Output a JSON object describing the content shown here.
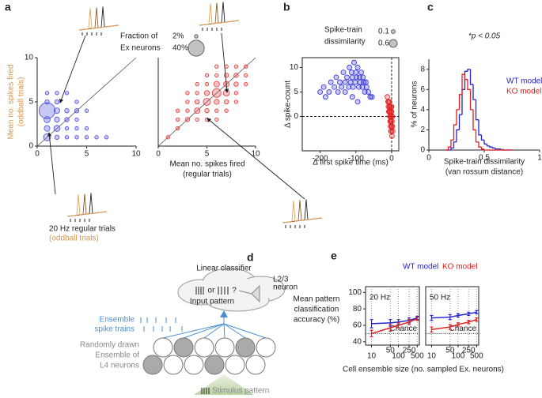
{
  "chart_data": [
    {
      "type": "bubble",
      "panel": "a",
      "xlim": [
        0,
        10
      ],
      "ylim": [
        0,
        10
      ],
      "xticks": [
        0,
        5,
        10
      ],
      "yticks": [
        0,
        5,
        10
      ],
      "frame": "spines",
      "identity_line": true,
      "ylabel": [
        "Mean no. spikes fired",
        "(oddball trials)"
      ],
      "ylabel_color": "#d9974a",
      "size_legend": {
        "title": [
          "Fraction of",
          "Ex neurons"
        ],
        "entries": [
          {
            "value": 2,
            "label": "2%"
          },
          {
            "value": 40,
            "label": "40%"
          }
        ]
      },
      "annotations": [
        {
          "text": "20 Hz regular trials",
          "color": "#222222"
        },
        {
          "text": "(oddball trials)",
          "color": "#d9974a"
        }
      ],
      "series": [
        {
          "color": "#4a4ae0",
          "x": [
            1,
            1,
            1,
            1,
            1,
            1,
            2,
            2,
            2,
            2,
            2,
            2,
            3,
            3,
            3,
            3,
            3,
            4,
            4,
            4,
            4,
            4,
            5,
            5,
            5,
            6,
            7
          ],
          "values": [
            4,
            1,
            2,
            3,
            5,
            6,
            1,
            2,
            3,
            4,
            5,
            6,
            1,
            2,
            3,
            4,
            6,
            1,
            2,
            3,
            4,
            5,
            1,
            2,
            4,
            1,
            1
          ],
          "sizes": [
            40,
            8,
            5,
            6,
            3,
            2,
            3,
            6,
            4,
            5,
            3,
            2,
            2,
            2,
            3,
            3,
            2,
            2,
            2,
            2,
            3,
            2,
            2,
            2,
            2,
            2,
            2
          ]
        }
      ]
    },
    {
      "type": "bubble",
      "xlim": [
        0,
        10
      ],
      "ylim": [
        0,
        10
      ],
      "xticks": [
        0,
        5,
        10
      ],
      "frame": "spines",
      "identity_line": true,
      "xlabel": [
        "Mean no. spikes fired",
        "(regular trials)"
      ],
      "series": [
        {
          "color": "#e03a3a",
          "x": [
            6,
            5,
            4,
            7,
            6,
            7,
            5,
            6,
            8,
            7,
            8,
            4,
            5,
            3,
            3,
            4,
            6,
            7,
            8,
            2,
            9,
            8,
            5,
            4,
            9,
            6,
            3,
            7,
            1,
            2,
            5,
            6,
            9,
            5,
            4,
            8,
            3,
            2,
            7,
            6
          ],
          "values": [
            6,
            5,
            4,
            6,
            7,
            7,
            6,
            5,
            7,
            8,
            8,
            5,
            4,
            3,
            4,
            3,
            4,
            5,
            6,
            2,
            8,
            9,
            7,
            6,
            9,
            8,
            5,
            4,
            1,
            3,
            3,
            9,
            7,
            8,
            7,
            5,
            6,
            4,
            9,
            3
          ],
          "sizes": [
            12,
            8,
            5,
            6,
            5,
            5,
            4,
            4,
            3,
            3,
            3,
            3,
            3,
            3,
            2,
            2,
            2,
            3,
            2,
            2,
            2,
            2,
            2,
            2,
            2,
            2,
            2,
            2,
            2,
            2,
            2,
            2,
            2,
            2,
            2,
            2,
            2,
            2,
            2,
            2
          ]
        }
      ]
    },
    {
      "type": "scatter",
      "panel": "b",
      "xlim": [
        -250,
        20
      ],
      "ylim": [
        -7,
        12
      ],
      "xticks": [
        -200,
        -100,
        0
      ],
      "yticks": [
        0,
        5,
        10
      ],
      "frame": "box",
      "zero_lines": true,
      "xlabel": [
        "Δ first spike time (ms)"
      ],
      "ylabel": [
        "Δ spike-count"
      ],
      "size_legend": {
        "title": [
          "Spike-train",
          "dissimilarity"
        ],
        "entries": [
          {
            "value": 0.1,
            "label": "0.1"
          },
          {
            "value": 0.6,
            "label": "0.6"
          }
        ]
      },
      "series": [
        {
          "color": "#2a2ae0",
          "x": [
            -200,
            -190,
            -185,
            -175,
            -170,
            -160,
            -155,
            -150,
            -145,
            -140,
            -135,
            -130,
            -125,
            -120,
            -118,
            -115,
            -112,
            -110,
            -108,
            -105,
            -102,
            -100,
            -98,
            -95,
            -92,
            -90,
            -88,
            -85,
            -82,
            -80,
            -78,
            -75,
            -72,
            -70,
            -65,
            -60,
            -55,
            -130,
            -110,
            -95
          ],
          "values": [
            5,
            6,
            4,
            5,
            7,
            6,
            8,
            5,
            7,
            6,
            9,
            7,
            8,
            6,
            10,
            7,
            9,
            8,
            6,
            11,
            7,
            9,
            8,
            10,
            6,
            8,
            7,
            9,
            6,
            8,
            7,
            5,
            7,
            6,
            5,
            4,
            4,
            5,
            4,
            3
          ]
        },
        {
          "color": "#e02020",
          "x": [
            -12,
            -10,
            -9,
            -8,
            -7,
            -6,
            -5,
            -5,
            -4,
            -4,
            -3,
            -3,
            -2,
            -2,
            -1,
            -1,
            0,
            0,
            1,
            1,
            2,
            2,
            3,
            -6,
            -8,
            -4,
            -2,
            0,
            -3,
            -1
          ],
          "values": [
            4,
            3,
            2,
            3,
            1,
            2,
            0,
            1,
            -1,
            2,
            0,
            -2,
            1,
            -1,
            -3,
            0,
            -2,
            2,
            -1,
            -4,
            -2,
            0,
            -3,
            3,
            1,
            -1,
            -3,
            1,
            0,
            2
          ]
        }
      ]
    },
    {
      "type": "histogram",
      "panel": "c",
      "xlim": [
        0,
        1
      ],
      "ylim": [
        0,
        9
      ],
      "xticks": [
        0,
        0.5,
        1
      ],
      "yticks": [
        0,
        2,
        4,
        6,
        8
      ],
      "frame": "spines",
      "xlabel": [
        "Spike-train dissimilarity",
        "(van rossum distance)"
      ],
      "ylabel": [
        "% of neurons"
      ],
      "annotation": "*p < 0.05",
      "legend": "upper right",
      "bins": [
        0.15,
        0.175,
        0.2,
        0.225,
        0.25,
        0.275,
        0.3,
        0.325,
        0.35,
        0.375,
        0.4,
        0.425,
        0.45,
        0.475,
        0.5,
        0.525,
        0.55,
        0.575,
        0.6,
        0.625,
        0.65,
        0.675,
        0.7,
        0.725,
        0.75
      ],
      "series": [
        {
          "name": "WT model",
          "color": "#2424d0",
          "values": [
            0,
            0,
            0.2,
            0.8,
            2,
            3.5,
            6,
            7.8,
            8,
            6.5,
            5,
            3,
            1.5,
            1,
            0.6,
            0.4,
            0.3,
            0.2,
            0.1,
            0.1,
            0.05,
            0,
            0,
            0
          ]
        },
        {
          "name": "KO model",
          "color": "#e02020",
          "values": [
            0,
            0.3,
            1,
            2.5,
            4,
            5.5,
            7.5,
            7,
            6,
            4,
            2,
            0.8,
            0.3,
            0.1,
            0,
            0,
            0,
            0,
            0,
            0,
            0,
            0,
            0,
            0
          ]
        }
      ]
    },
    {
      "type": "line",
      "panel": "e",
      "title": "20 Hz",
      "log_x": true,
      "xlim": [
        6,
        600
      ],
      "ylim": [
        36,
        107
      ],
      "xticks": [
        10,
        50,
        100,
        250,
        500
      ],
      "yticks": [
        40,
        60,
        80,
        100
      ],
      "frame": "box",
      "grid": true,
      "chance": {
        "value": 50,
        "label": "Chance"
      },
      "ylabel": [
        "Mean pattern",
        "classification",
        "accuracy (%)"
      ],
      "xlabel": [
        "Cell ensemble size (no. sampled Ex. neurons)"
      ],
      "series": [
        {
          "name": "WT model",
          "color": "#2424d0",
          "x": [
            10,
            50,
            100,
            250,
            500
          ],
          "values": [
            62,
            63,
            64,
            66,
            69
          ],
          "errors": [
            5,
            4,
            3,
            3,
            2
          ]
        },
        {
          "name": "KO model",
          "color": "#e02020",
          "x": [
            10,
            50,
            100,
            250,
            500
          ],
          "values": [
            50,
            57,
            60,
            64,
            68
          ],
          "errors": [
            4,
            4,
            3,
            3,
            2
          ]
        }
      ]
    },
    {
      "type": "line",
      "title": "50 Hz",
      "log_x": true,
      "xlim": [
        6,
        600
      ],
      "ylim": [
        36,
        107
      ],
      "xticks": [
        10,
        50,
        100,
        250,
        500
      ],
      "frame": "box",
      "grid": true,
      "legend": "top",
      "chance": {
        "value": 50,
        "label": "Chance"
      },
      "series": [
        {
          "name": "WT model",
          "color": "#2424d0",
          "x": [
            10,
            50,
            100,
            250,
            500
          ],
          "values": [
            69,
            70,
            72,
            74,
            76
          ],
          "errors": [
            3,
            3,
            2,
            2,
            2
          ]
        },
        {
          "name": "KO model",
          "color": "#e02020",
          "x": [
            10,
            50,
            100,
            250,
            500
          ],
          "values": [
            55,
            58,
            61,
            64,
            67
          ],
          "errors": [
            3,
            3,
            2,
            2,
            2
          ]
        }
      ]
    }
  ],
  "diagram": {
    "panel": "d",
    "title": "Linear classifier",
    "choice": "or",
    "question": "?",
    "input": "Input pattern",
    "neuron": [
      "L2/3",
      "neuron"
    ],
    "spikes_label": [
      "Ensemble",
      "spike trains"
    ],
    "ensemble_label": [
      "Randomly drawn",
      "Ensemble of",
      "L4 neurons"
    ],
    "stimulus": "Stimulus pattern"
  }
}
